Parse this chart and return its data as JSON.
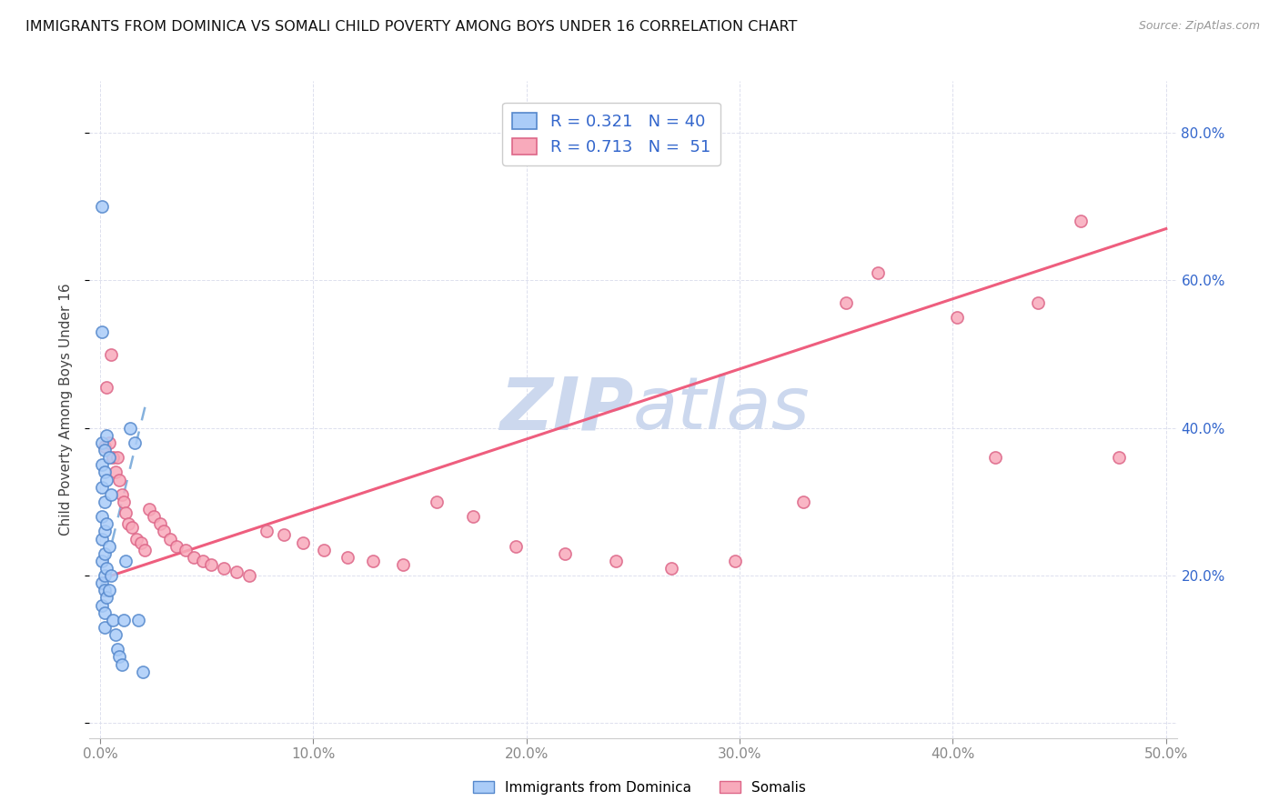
{
  "title": "IMMIGRANTS FROM DOMINICA VS SOMALI CHILD POVERTY AMONG BOYS UNDER 16 CORRELATION CHART",
  "source": "Source: ZipAtlas.com",
  "ylabel": "Child Poverty Among Boys Under 16",
  "xlim": [
    -0.005,
    0.505
  ],
  "ylim": [
    -0.02,
    0.87
  ],
  "x_tick_vals": [
    0.0,
    0.1,
    0.2,
    0.3,
    0.4,
    0.5
  ],
  "x_tick_labels": [
    "0.0%",
    "10.0%",
    "20.0%",
    "30.0%",
    "40.0%",
    "50.0%"
  ],
  "y_tick_vals": [
    0.0,
    0.2,
    0.4,
    0.6,
    0.8
  ],
  "y_tick_labels": [
    "",
    "20.0%",
    "40.0%",
    "60.0%",
    "80.0%"
  ],
  "dominica_color": "#aaccf8",
  "dominica_edge": "#5588cc",
  "somali_color": "#f8aabb",
  "somali_edge": "#dd6688",
  "trend_dominica_color": "#4488cc",
  "trend_somali_color": "#ee5577",
  "watermark_text": "ZIPatlas",
  "watermark_color": "#ccd8ee",
  "legend_r1": "R = 0.321",
  "legend_n1": "N = 40",
  "legend_r2": "R = 0.713",
  "legend_n2": "N =  51",
  "dominica_label": "Immigrants from Dominica",
  "somali_label": "Somalis",
  "dominica_x": [
    0.001,
    0.001,
    0.001,
    0.001,
    0.001,
    0.001,
    0.001,
    0.001,
    0.001,
    0.001,
    0.002,
    0.002,
    0.002,
    0.002,
    0.002,
    0.002,
    0.002,
    0.002,
    0.002,
    0.003,
    0.003,
    0.003,
    0.003,
    0.003,
    0.004,
    0.004,
    0.004,
    0.005,
    0.005,
    0.006,
    0.007,
    0.008,
    0.009,
    0.01,
    0.011,
    0.012,
    0.014,
    0.016,
    0.018,
    0.02
  ],
  "dominica_y": [
    0.7,
    0.53,
    0.38,
    0.35,
    0.32,
    0.28,
    0.25,
    0.22,
    0.19,
    0.16,
    0.37,
    0.34,
    0.3,
    0.26,
    0.23,
    0.2,
    0.18,
    0.15,
    0.13,
    0.39,
    0.33,
    0.27,
    0.21,
    0.17,
    0.36,
    0.24,
    0.18,
    0.31,
    0.2,
    0.14,
    0.12,
    0.1,
    0.09,
    0.08,
    0.14,
    0.22,
    0.4,
    0.38,
    0.14,
    0.07
  ],
  "somali_x": [
    0.002,
    0.003,
    0.004,
    0.005,
    0.006,
    0.007,
    0.008,
    0.009,
    0.01,
    0.011,
    0.012,
    0.013,
    0.015,
    0.017,
    0.019,
    0.021,
    0.023,
    0.025,
    0.028,
    0.03,
    0.033,
    0.036,
    0.04,
    0.044,
    0.048,
    0.052,
    0.058,
    0.064,
    0.07,
    0.078,
    0.086,
    0.095,
    0.105,
    0.116,
    0.128,
    0.142,
    0.158,
    0.175,
    0.195,
    0.218,
    0.242,
    0.268,
    0.298,
    0.33,
    0.365,
    0.402,
    0.44,
    0.478,
    0.35,
    0.42,
    0.46
  ],
  "somali_y": [
    0.375,
    0.455,
    0.38,
    0.5,
    0.36,
    0.34,
    0.36,
    0.33,
    0.31,
    0.3,
    0.285,
    0.27,
    0.265,
    0.25,
    0.245,
    0.235,
    0.29,
    0.28,
    0.27,
    0.26,
    0.25,
    0.24,
    0.235,
    0.225,
    0.22,
    0.215,
    0.21,
    0.205,
    0.2,
    0.26,
    0.255,
    0.245,
    0.235,
    0.225,
    0.22,
    0.215,
    0.3,
    0.28,
    0.24,
    0.23,
    0.22,
    0.21,
    0.22,
    0.3,
    0.61,
    0.55,
    0.57,
    0.36,
    0.57,
    0.36,
    0.68
  ],
  "trend_somali_x0": 0.0,
  "trend_somali_x1": 0.5,
  "trend_somali_y0": 0.195,
  "trend_somali_y1": 0.67,
  "trend_dominica_x0": 0.0,
  "trend_dominica_x1": 0.022,
  "trend_dominica_y0": 0.18,
  "trend_dominica_y1": 0.44
}
